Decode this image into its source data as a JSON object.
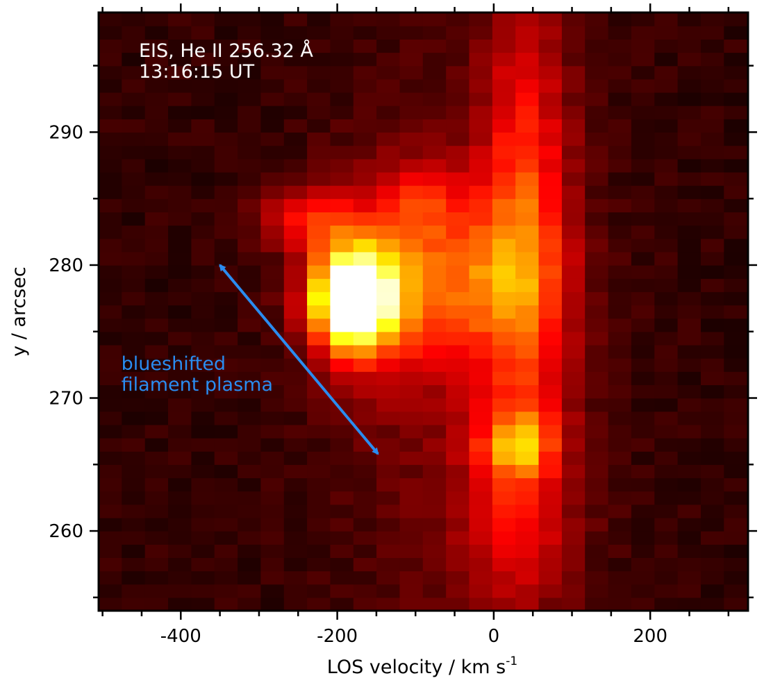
{
  "chart_data": {
    "type": "heatmap",
    "title_lines": [
      "EIS, He II 256.32 Å",
      "13:16:15 UT"
    ],
    "xlabel": "LOS velocity / km s",
    "xlabel_superscript": "-1",
    "ylabel": "y / arcsec",
    "xlim": [
      -505,
      325
    ],
    "ylim": [
      254,
      299
    ],
    "x_major_ticks": [
      -400,
      -200,
      0,
      200
    ],
    "x_tick_labels": [
      "-400",
      "-200",
      "0",
      "200"
    ],
    "x_minor_step": 50,
    "y_major_ticks": [
      260,
      270,
      280,
      290
    ],
    "y_tick_labels": [
      "260",
      "270",
      "280",
      "290"
    ],
    "y_minor_step": 5,
    "grid": false,
    "colormap": "hot",
    "background_color": "#1a0505",
    "pixel_size": {
      "dx": 29.6,
      "dy": 1.0
    },
    "hotspots": [
      {
        "x": -180,
        "y": 277.5,
        "sx": 35,
        "sy": 2.5,
        "a": 1.05
      },
      {
        "x": -150,
        "y": 278.5,
        "sx": 60,
        "sy": 5,
        "a": 0.3
      },
      {
        "x": -240,
        "y": 283.5,
        "sx": 40,
        "sy": 1.5,
        "a": 0.28
      },
      {
        "x": -30,
        "y": 279,
        "sx": 70,
        "sy": 4,
        "a": 0.28
      },
      {
        "x": 40,
        "y": 278,
        "sx": 40,
        "sy": 10,
        "a": 0.24
      },
      {
        "x": 30,
        "y": 266.5,
        "sx": 30,
        "sy": 1.5,
        "a": 0.32
      },
      {
        "x": 30,
        "y": 262,
        "sx": 50,
        "sy": 6,
        "a": 0.2
      },
      {
        "x": 40,
        "y": 290,
        "sx": 40,
        "sy": 9,
        "a": 0.17
      },
      {
        "x": -40,
        "y": 272,
        "sx": 110,
        "sy": 18,
        "a": 0.1
      },
      {
        "x": -90,
        "y": 285,
        "sx": 40,
        "sy": 2,
        "a": 0.16
      }
    ],
    "annotation": {
      "text_lines": [
        "blueshifted",
        "filament plasma"
      ],
      "color": "#2a8cf0",
      "arrow_from": {
        "x": -350,
        "y": 280
      },
      "arrow_to": {
        "x": -148,
        "y": 265.8
      },
      "text_position": {
        "x": -476,
        "y": 272
      }
    }
  }
}
